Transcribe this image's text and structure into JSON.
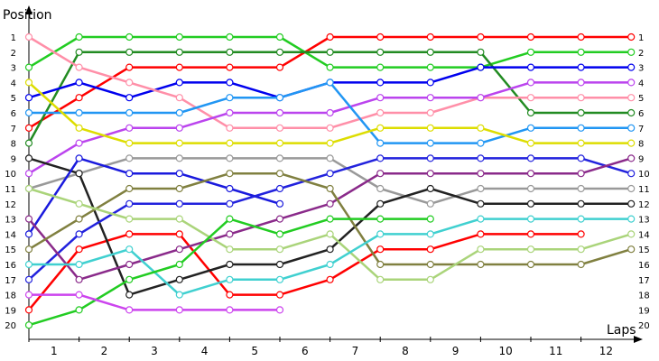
{
  "chart_data": {
    "type": "line",
    "ylabel": "Position",
    "xlabel": "Laps",
    "y_ticks": [
      "1",
      "2",
      "3",
      "4",
      "5",
      "6",
      "7",
      "8",
      "9",
      "10",
      "11",
      "12",
      "13",
      "14",
      "15",
      "16",
      "17",
      "18",
      "19",
      "20"
    ],
    "x_ticks": [
      "1",
      "2",
      "3",
      "4",
      "5",
      "6",
      "7",
      "8",
      "9",
      "10",
      "11",
      "12"
    ],
    "x_points": [
      0,
      1,
      2,
      3,
      4,
      5,
      6,
      7,
      8,
      9,
      10,
      11,
      12
    ],
    "ylim": [
      1,
      20
    ],
    "grid": false,
    "series": [
      {
        "color": "#ff0000",
        "values": [
          19,
          15,
          14,
          14,
          18,
          18,
          17,
          15,
          15,
          14,
          14,
          14
        ]
      },
      {
        "color": "#ff0000",
        "values": [
          7,
          5,
          3,
          3,
          3,
          3,
          1,
          1,
          1,
          1,
          1,
          1,
          1
        ]
      },
      {
        "color": "#22cc22",
        "values": [
          3,
          1,
          1,
          1,
          1,
          1,
          3,
          3,
          3,
          3,
          2,
          2,
          2
        ]
      },
      {
        "color": "#228b22",
        "values": [
          8,
          2,
          2,
          2,
          2,
          2,
          2,
          2,
          2,
          2,
          6,
          6,
          6
        ]
      },
      {
        "color": "#0000ee",
        "values": [
          5,
          4,
          5,
          4,
          4,
          5,
          4,
          4,
          4,
          3,
          3,
          3,
          3
        ]
      },
      {
        "color": "#ff8fa8",
        "values": [
          1,
          3,
          4,
          5,
          7,
          7,
          7,
          6,
          6,
          5,
          5,
          5,
          5
        ]
      },
      {
        "color": "#bb44ee",
        "values": [
          10,
          8,
          7,
          7,
          6,
          6,
          6,
          5,
          5,
          5,
          4,
          4,
          4
        ]
      },
      {
        "color": "#2196f3",
        "values": [
          6,
          6,
          6,
          6,
          5,
          5,
          4,
          8,
          8,
          8,
          7,
          7,
          7
        ]
      },
      {
        "color": "#dddd00",
        "values": [
          4,
          7,
          8,
          8,
          8,
          8,
          8,
          7,
          7,
          7,
          8,
          8,
          8
        ]
      },
      {
        "color": "#999999",
        "values": [
          11,
          10,
          9,
          9,
          9,
          9,
          9,
          11,
          12,
          11,
          11,
          11,
          11
        ]
      },
      {
        "color": "#222222",
        "values": [
          9,
          10,
          18,
          17,
          16,
          16,
          15,
          12,
          11,
          12,
          12,
          12,
          12
        ]
      },
      {
        "color": "#1a1add",
        "values": [
          14,
          9,
          10,
          10,
          11,
          12
        ]
      },
      {
        "color": "#2222dd",
        "values": [
          17,
          14,
          12,
          12,
          12,
          11,
          10,
          9,
          9,
          9,
          9,
          9,
          10
        ]
      },
      {
        "color": "#8a2a8a",
        "values": [
          13,
          17,
          16,
          15,
          14,
          13,
          12,
          10,
          10,
          10,
          10,
          10,
          9
        ]
      },
      {
        "color": "#808040",
        "values": [
          15,
          13,
          11,
          11,
          10,
          10,
          11,
          16,
          16,
          16,
          16,
          16,
          15
        ]
      },
      {
        "color": "#aad47a",
        "values": [
          11,
          12,
          13,
          13,
          15,
          15,
          14,
          17,
          17,
          15,
          15,
          15,
          14
        ]
      },
      {
        "color": "#40d0d0",
        "values": [
          16,
          16,
          15,
          18,
          17,
          17,
          16,
          14,
          14,
          13,
          13,
          13,
          13
        ]
      },
      {
        "color": "#22cc22",
        "values": [
          20,
          19,
          17,
          16,
          13,
          14,
          13,
          13,
          13
        ]
      },
      {
        "color": "#cc44ee",
        "values": [
          18,
          18,
          19,
          19,
          19,
          19
        ]
      }
    ]
  }
}
